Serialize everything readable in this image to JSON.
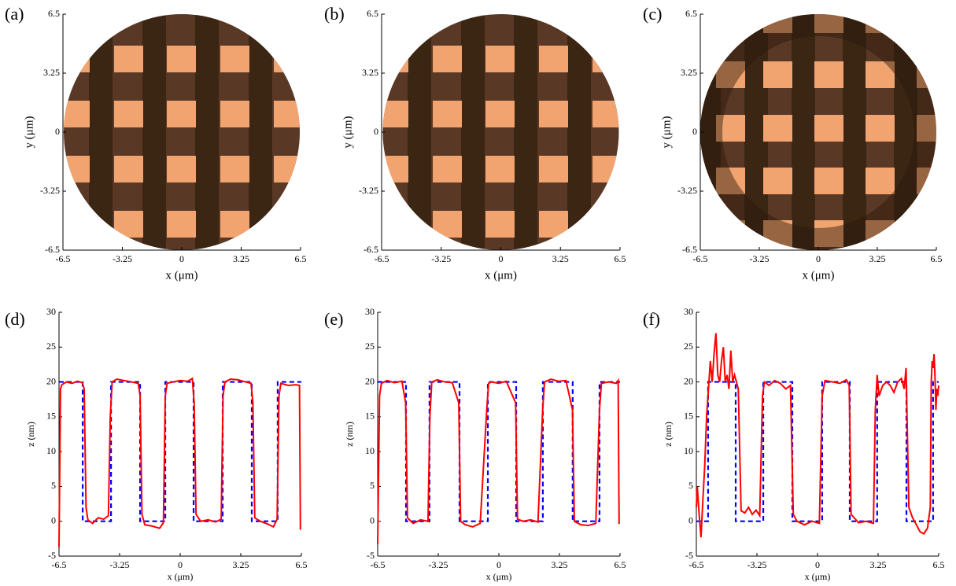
{
  "chart_data": [
    {
      "type": "image",
      "label": "(a)",
      "xlabel": "x (μm)",
      "ylabel": "y (μm)",
      "xlim": [
        -6.5,
        6.5
      ],
      "ylim": [
        -6.5,
        6.5
      ],
      "xticks": [
        -6.5,
        -3.25,
        0,
        3.25,
        6.5
      ],
      "yticks": [
        -6.5,
        -3.25,
        0,
        3.25,
        6.5
      ]
    },
    {
      "type": "image",
      "label": "(b)",
      "xlabel": "x (μm)",
      "ylabel": "y (μm)",
      "xlim": [
        -6.5,
        6.5
      ],
      "ylim": [
        -6.5,
        6.5
      ],
      "xticks": [
        -6.5,
        -3.25,
        0,
        3.25,
        6.5
      ],
      "yticks": [
        -6.5,
        -3.25,
        0,
        3.25,
        6.5
      ]
    },
    {
      "type": "image",
      "label": "(c)",
      "xlabel": "x (μm)",
      "ylabel": "y (μm)",
      "xlim": [
        -6.5,
        6.5
      ],
      "ylim": [
        -6.5,
        6.5
      ],
      "xticks": [
        -6.5,
        -3.25,
        0,
        3.25,
        6.5
      ],
      "yticks": [
        -6.5,
        -3.25,
        0,
        3.25,
        6.5
      ]
    },
    {
      "type": "line",
      "label": "(d)",
      "xlabel": "x (μm)",
      "ylabel": "z (nm)",
      "xlim": [
        -6.5,
        6.5
      ],
      "ylim": [
        -5,
        30
      ],
      "xticks": [
        -6.5,
        -3.25,
        0,
        3.25,
        6.5
      ],
      "yticks": [
        -5,
        0,
        5,
        10,
        15,
        20,
        25,
        30
      ],
      "series": [
        {
          "color": "#0000ff",
          "dashed": true,
          "x": [
            -6.5,
            -5.23,
            -5.23,
            -3.71,
            -3.71,
            -2.15,
            -2.15,
            -0.8,
            -0.8,
            0.72,
            0.72,
            2.28,
            2.28,
            3.84,
            3.84,
            5.23,
            5.23,
            6.5
          ],
          "values": [
            20,
            20,
            0,
            0,
            20,
            20,
            0,
            0,
            20,
            20,
            0,
            0,
            20,
            20,
            0,
            0,
            20,
            20
          ]
        },
        {
          "color": "#ff0000",
          "dashed": false,
          "x": [
            -6.5,
            -6.42,
            -6.35,
            -6.1,
            -5.8,
            -5.5,
            -5.25,
            -5.15,
            -5.05,
            -4.95,
            -4.7,
            -4.4,
            -4.1,
            -3.85,
            -3.75,
            -3.65,
            -3.4,
            -3.0,
            -2.6,
            -2.25,
            -2.15,
            -2.05,
            -1.9,
            -1.5,
            -1.1,
            -0.9,
            -0.8,
            -0.7,
            -0.4,
            0,
            0.4,
            0.65,
            0.75,
            0.85,
            1.1,
            1.5,
            1.9,
            2.2,
            2.3,
            2.4,
            2.7,
            3.1,
            3.5,
            3.8,
            3.9,
            4.0,
            4.3,
            4.7,
            5.0,
            5.2,
            5.3,
            5.4,
            5.8,
            6.2,
            6.4,
            6.45
          ],
          "values": [
            -3.7,
            19,
            19.6,
            20,
            19.8,
            20.1,
            19.9,
            19,
            2,
            0.2,
            -0.3,
            0.5,
            0.3,
            0.8,
            15,
            20,
            20.4,
            20.2,
            20,
            19.8,
            18,
            1,
            -0.5,
            -0.7,
            -1,
            -0.2,
            18,
            19.8,
            20,
            20.2,
            20.1,
            20.5,
            17,
            1,
            0,
            0.2,
            -0.1,
            0.3,
            18,
            20,
            20.4,
            20.3,
            20,
            19.8,
            17,
            0.5,
            0,
            -0.4,
            -0.8,
            0.3,
            18,
            19.8,
            19.5,
            19.6,
            19.5,
            -1.2
          ]
        }
      ]
    },
    {
      "type": "line",
      "label": "(e)",
      "xlabel": "x (μm)",
      "ylabel": "z (nm)",
      "xlim": [
        -6.5,
        6.5
      ],
      "ylim": [
        -5,
        30
      ],
      "xticks": [
        -6.5,
        -3.25,
        0,
        3.25,
        6.5
      ],
      "yticks": [
        -5,
        0,
        5,
        10,
        15,
        20,
        25,
        30
      ],
      "series": [
        {
          "color": "#0000ff",
          "dashed": true,
          "x": [
            -6.5,
            -4.98,
            -4.98,
            -3.72,
            -3.72,
            -2.11,
            -2.11,
            -0.59,
            -0.59,
            0.93,
            0.93,
            2.36,
            2.36,
            3.96,
            3.96,
            5.4,
            5.4,
            6.5
          ],
          "values": [
            20,
            20,
            0,
            0,
            20,
            20,
            0,
            0,
            20,
            20,
            0,
            0,
            20,
            20,
            0,
            0,
            20,
            20
          ]
        },
        {
          "color": "#ff0000",
          "dashed": false,
          "x": [
            -6.5,
            -6.4,
            -6.3,
            -6.0,
            -5.6,
            -5.2,
            -5.0,
            -4.9,
            -4.6,
            -4.2,
            -3.8,
            -3.7,
            -3.6,
            -3.3,
            -2.9,
            -2.5,
            -2.15,
            -2.05,
            -1.8,
            -1.4,
            -1.0,
            -0.65,
            -0.55,
            -0.4,
            0,
            0.4,
            0.9,
            1.0,
            1.3,
            1.7,
            2.1,
            2.35,
            2.45,
            2.8,
            3.2,
            3.6,
            3.95,
            4.05,
            4.4,
            4.8,
            5.2,
            5.4,
            5.5,
            5.9,
            6.3,
            6.4,
            6.45
          ],
          "values": [
            -3.3,
            18,
            19.8,
            20.2,
            19.9,
            20.1,
            17,
            0.5,
            -0.3,
            0.2,
            0,
            15,
            20,
            20.3,
            20,
            19.9,
            17,
            0,
            -0.5,
            -0.8,
            -0.3,
            16,
            19.8,
            20,
            19.8,
            20.1,
            17,
            0.3,
            0,
            0.2,
            -0.1,
            16,
            20,
            20.4,
            20.1,
            20.2,
            16,
            0,
            -0.5,
            -0.6,
            -0.3,
            16,
            19.8,
            20,
            19.8,
            20.2,
            -0.4
          ]
        }
      ]
    },
    {
      "type": "line",
      "label": "(f)",
      "xlabel": "x (μm)",
      "ylabel": "z (nm)",
      "xlim": [
        -6.5,
        6.5
      ],
      "ylim": [
        -5,
        30
      ],
      "xticks": [
        -6.5,
        -3.25,
        0,
        3.25,
        6.5
      ],
      "yticks": [
        -5,
        0,
        5,
        10,
        15,
        20,
        25,
        30
      ],
      "series": [
        {
          "color": "#0000ff",
          "dashed": true,
          "x": [
            -6.5,
            -5.87,
            -5.87,
            -4.39,
            -4.39,
            -2.91,
            -2.91,
            -1.35,
            -1.35,
            0.25,
            0.25,
            1.73,
            1.73,
            3.2,
            3.2,
            4.77,
            4.77,
            6.2,
            6.2,
            6.5
          ],
          "values": [
            0,
            0,
            20,
            20,
            0,
            0,
            20,
            20,
            0,
            0,
            20,
            20,
            0,
            0,
            20,
            20,
            0,
            0,
            20,
            20
          ]
        },
        {
          "color": "#ff0000",
          "dashed": false,
          "x": [
            -6.5,
            -6.45,
            -6.35,
            -6.25,
            -6.15,
            -6.05,
            -5.95,
            -5.85,
            -5.75,
            -5.65,
            -5.55,
            -5.45,
            -5.35,
            -5.25,
            -5.15,
            -5.05,
            -4.95,
            -4.85,
            -4.75,
            -4.65,
            -4.55,
            -4.45,
            -4.35,
            -4.25,
            -4.1,
            -3.9,
            -3.7,
            -3.5,
            -3.3,
            -3.1,
            -2.95,
            -2.85,
            -2.6,
            -2.3,
            -2.0,
            -1.7,
            -1.45,
            -1.3,
            -1.1,
            -0.7,
            -0.3,
            0.1,
            0.25,
            0.4,
            0.8,
            1.2,
            1.55,
            1.7,
            1.8,
            2.2,
            2.6,
            3.0,
            3.1,
            3.2,
            3.3,
            3.5,
            3.7,
            3.9,
            4.1,
            4.3,
            4.5,
            4.65,
            4.75,
            4.9,
            5.1,
            5.3,
            5.5,
            5.7,
            5.9,
            6.05,
            6.1,
            6.15,
            6.2,
            6.25,
            6.3,
            6.35,
            6.4,
            6.45,
            6.5
          ],
          "values": [
            2,
            5,
            1,
            -2.3,
            3,
            8,
            15,
            19,
            23,
            20,
            24,
            27,
            21,
            20,
            23,
            25,
            20,
            21,
            19,
            24.5,
            20,
            21,
            20,
            19,
            1.5,
            1.2,
            2,
            1,
            1.6,
            0.8,
            18,
            20,
            19.5,
            20.2,
            19.8,
            19,
            19.5,
            1,
            0,
            -0.5,
            0,
            -0.3,
            18,
            20.2,
            20,
            19.8,
            20.3,
            19.5,
            1,
            -0.2,
            0,
            -0.3,
            16,
            21,
            18,
            19.5,
            20,
            19.5,
            18.5,
            20,
            20.5,
            19,
            22,
            2,
            0.5,
            -0.5,
            -1.5,
            -1.8,
            -1,
            2,
            20,
            23,
            22,
            24,
            21,
            16,
            19,
            18,
            19.5
          ]
        }
      ]
    }
  ]
}
